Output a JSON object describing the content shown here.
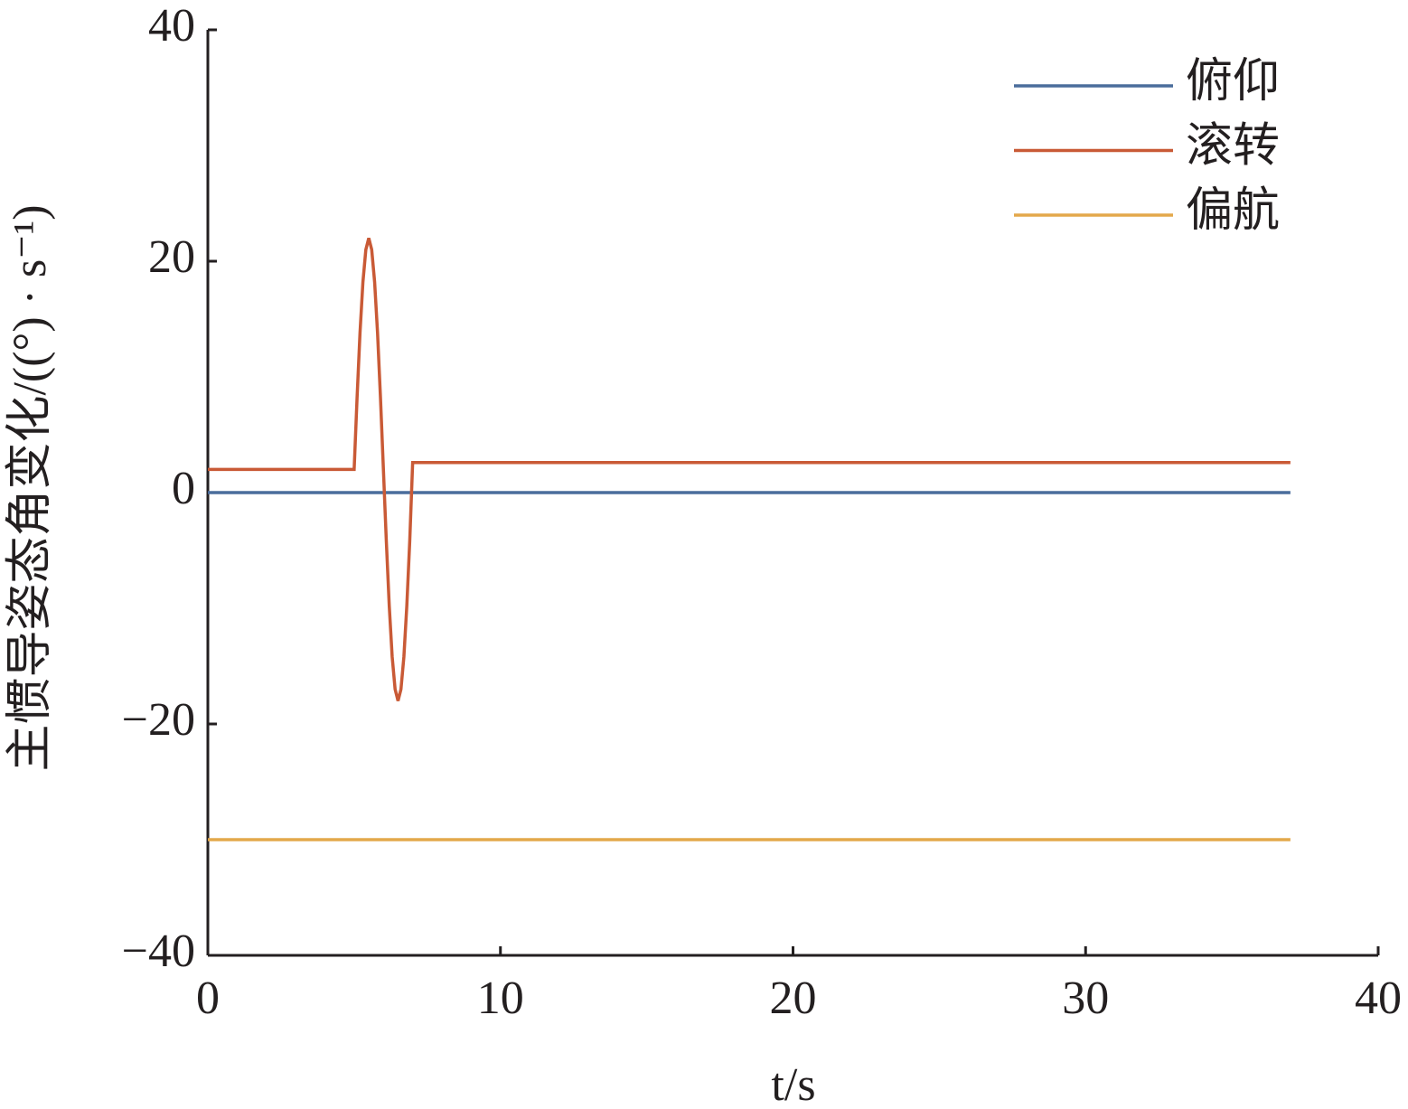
{
  "chart_data": {
    "type": "line",
    "xlabel": "t/s",
    "ylabel": "主惯导姿态角变化/((°) · s⁻¹)",
    "x": [
      0,
      5,
      5.1,
      5.2,
      5.3,
      5.4,
      5.5,
      5.6,
      5.7,
      5.8,
      5.9,
      6,
      6.1,
      6.2,
      6.3,
      6.4,
      6.5,
      6.6,
      6.7,
      6.8,
      6.9,
      7,
      37
    ],
    "series": [
      {
        "name": "俯仰",
        "color": "#4a6d9c",
        "values": [
          0,
          0,
          0,
          0,
          0,
          0,
          0,
          0,
          0,
          0,
          0,
          0,
          0,
          0,
          0,
          0,
          0,
          0,
          0,
          0,
          0,
          0,
          0
        ]
      },
      {
        "name": "滚转",
        "color": "#c95a36",
        "values": [
          2,
          2,
          8.2,
          13.8,
          18.2,
          21,
          22,
          21,
          18.2,
          13.8,
          8.2,
          2,
          -4.2,
          -9.8,
          -14.2,
          -17,
          -18,
          -17,
          -14.2,
          -9.8,
          -4.2,
          2.6,
          2.6
        ]
      },
      {
        "name": "偏航",
        "color": "#e3a84b",
        "values": [
          -30,
          -30,
          -30,
          -30,
          -30,
          -30,
          -30,
          -30,
          -30,
          -30,
          -30,
          -30,
          -30,
          -30,
          -30,
          -30,
          -30,
          -30,
          -30,
          -30,
          -30,
          -30,
          -30
        ]
      }
    ],
    "xlim": [
      0,
      40
    ],
    "xticks": [
      0,
      10,
      20,
      30,
      40
    ],
    "ylim": [
      -40,
      40
    ],
    "yticks": [
      {
        "value": -40,
        "label": "−40"
      },
      {
        "value": -20,
        "label": "−20"
      },
      0,
      20,
      40
    ],
    "legend": "upper-right"
  }
}
